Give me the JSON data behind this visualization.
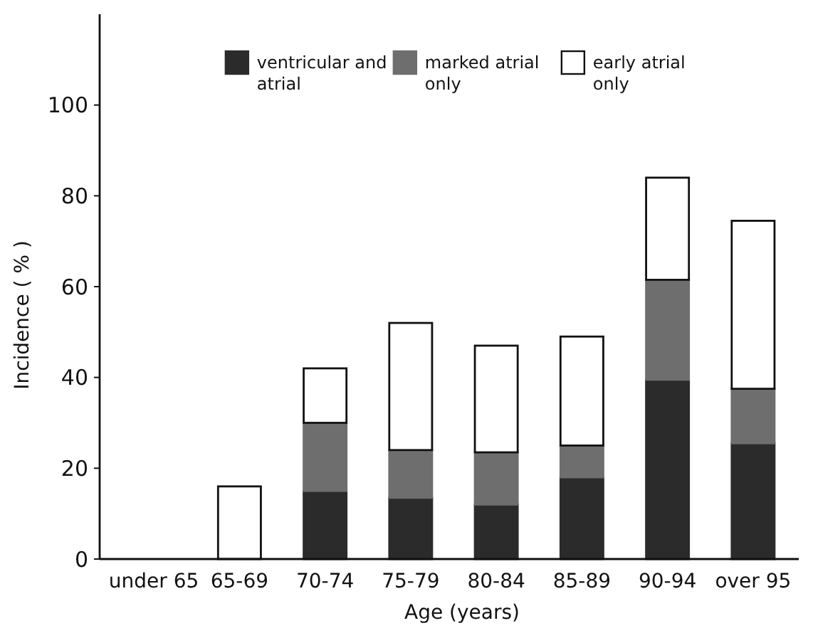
{
  "chart_data": {
    "type": "bar",
    "stacked": true,
    "xlabel": "Age (years)",
    "ylabel": "Incidence ( % )",
    "categories": [
      "under 65",
      "65-69",
      "70-74",
      "75-79",
      "80-84",
      "85-89",
      "90-94",
      "over 95"
    ],
    "series": [
      {
        "name": "ventricular and atrial",
        "color": "#2b2b2b",
        "values": [
          0,
          0,
          15,
          13.5,
          12,
          18,
          39.5,
          25.5
        ]
      },
      {
        "name": "marked atrial only",
        "color": "#6e6e6e",
        "values": [
          0,
          0,
          15,
          10.5,
          11.5,
          7,
          22,
          12
        ]
      },
      {
        "name": "early atrial only",
        "color": "#ffffff",
        "values": [
          0,
          16,
          12,
          28,
          23.5,
          24,
          22.5,
          37
        ]
      }
    ],
    "ylim": [
      0,
      120
    ],
    "yticks": [
      0,
      20,
      40,
      60,
      80,
      100
    ],
    "grid": false,
    "legend": "top"
  }
}
